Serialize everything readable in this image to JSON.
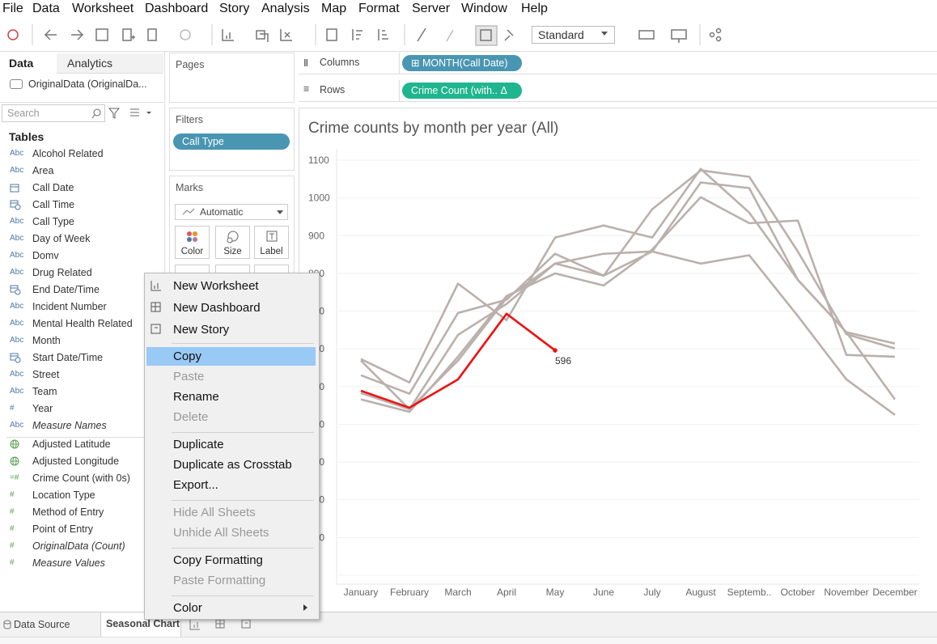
{
  "menu_bar": [
    "File",
    "Data",
    "Worksheet",
    "Dashboard",
    "Story",
    "Analysis",
    "Map",
    "Format",
    "Server",
    "Window",
    "Help"
  ],
  "toolbar": {
    "view_size": "Standard"
  },
  "data_pane": {
    "tabs": [
      "Data",
      "Analytics"
    ],
    "data_source": "OriginalData (OriginalDa...",
    "search_placeholder": "Search",
    "tables_label": "Tables",
    "dimensions": [
      {
        "icon": "Abc",
        "name": "Alcohol Related"
      },
      {
        "icon": "Abc",
        "name": "Area"
      },
      {
        "name": "Call Date"
      },
      {
        "name": "Call Time"
      },
      {
        "icon": "Abc",
        "name": "Call Type"
      },
      {
        "icon": "Abc",
        "name": "Day of Week"
      },
      {
        "icon": "Abc",
        "name": "Domv"
      },
      {
        "icon": "Abc",
        "name": "Drug Related"
      },
      {
        "name": "End Date/Time"
      },
      {
        "icon": "Abc",
        "name": "Incident Number"
      },
      {
        "icon": "Abc",
        "name": "Mental Health Related"
      },
      {
        "icon": "Abc",
        "name": "Month"
      },
      {
        "name": "Start Date/Time"
      },
      {
        "icon": "Abc",
        "name": "Street"
      },
      {
        "icon": "Abc",
        "name": "Team"
      },
      {
        "icon": "#",
        "name": "Year"
      },
      {
        "icon": "Abc",
        "name": "Measure Names",
        "italic": true
      }
    ],
    "measures": [
      {
        "name": "Adjusted Latitude"
      },
      {
        "name": "Adjusted Longitude"
      },
      {
        "icon": "=#",
        "name": "Crime Count (with 0s)"
      },
      {
        "icon": "#",
        "name": "Location Type"
      },
      {
        "icon": "#",
        "name": "Method of Entry"
      },
      {
        "icon": "#",
        "name": "Point of Entry"
      },
      {
        "icon": "#",
        "name": "OriginalData (Count)",
        "italic": true
      },
      {
        "icon": "#",
        "name": "Measure Values",
        "italic": true
      }
    ]
  },
  "pages": {
    "label": "Pages"
  },
  "filters": {
    "label": "Filters",
    "pills": [
      "Call Type"
    ]
  },
  "marks": {
    "label": "Marks",
    "mark_type": "Automatic",
    "buttons": [
      "Color",
      "Size",
      "Label"
    ]
  },
  "columns": {
    "label": "Columns",
    "pill": "MONTH(Call Date)"
  },
  "rows": {
    "label": "Rows",
    "pill": "Crime Count (with..",
    "pill_suffix": "Δ"
  },
  "chart_data": {
    "type": "line",
    "title": "Crime counts by month per year (All)",
    "categories": [
      "January",
      "February",
      "March",
      "April",
      "May",
      "June",
      "July",
      "August",
      "Septemb..",
      "October",
      "November",
      "December"
    ],
    "ylim": [
      0,
      1100
    ],
    "yticks": [
      0,
      100,
      200,
      300,
      400,
      500,
      600,
      700,
      800,
      900,
      1000,
      1100
    ],
    "grid": true,
    "series": [
      {
        "color": "#bab0ac",
        "values": [
          573,
          511,
          773,
          676,
          895,
          927,
          895,
          1077,
          961,
          783,
          644,
          614
        ]
      },
      {
        "color": "#bab0ac",
        "values": [
          530,
          481,
          695,
          730,
          852,
          794,
          970,
          1073,
          1056,
          858,
          639,
          601
        ]
      },
      {
        "color": "#bab0ac",
        "values": [
          483,
          440,
          637,
          719,
          826,
          852,
          858,
          826,
          848,
          687,
          519,
          425
        ]
      },
      {
        "color": "#bab0ac",
        "values": [
          466,
          433,
          579,
          740,
          800,
          768,
          863,
          1002,
          933,
          940,
          584,
          579
        ]
      },
      {
        "color": "#bab0ac",
        "values": [
          569,
          440,
          569,
          734,
          826,
          794,
          858,
          1041,
          1026,
          783,
          644,
          466
        ]
      },
      {
        "color": "#ee1111",
        "values": [
          489,
          444,
          519,
          693,
          596,
          null,
          null,
          null,
          null,
          null,
          null,
          null
        ],
        "value_labels": [
          null,
          null,
          null,
          null,
          "596",
          null,
          null,
          null,
          null,
          null,
          null,
          null
        ]
      }
    ]
  },
  "context_menu": {
    "items": [
      {
        "label": "New Worksheet"
      },
      {
        "label": "New Dashboard"
      },
      {
        "label": "New Story"
      },
      {
        "label": "Copy",
        "highlighted": true
      },
      {
        "label": "Paste",
        "enabled": false
      },
      {
        "label": "Rename"
      },
      {
        "label": "Delete",
        "enabled": false
      },
      {
        "label": "Duplicate"
      },
      {
        "label": "Duplicate as Crosstab"
      },
      {
        "label": "Export..."
      },
      {
        "label": "Hide All Sheets",
        "enabled": false
      },
      {
        "label": "Unhide All Sheets",
        "enabled": false
      },
      {
        "label": "Copy Formatting"
      },
      {
        "label": "Paste Formatting",
        "enabled": false
      },
      {
        "label": "Color",
        "submenu": true
      }
    ]
  },
  "sheet_tabs": [
    "Data Source",
    "Seasonal Chart"
  ]
}
